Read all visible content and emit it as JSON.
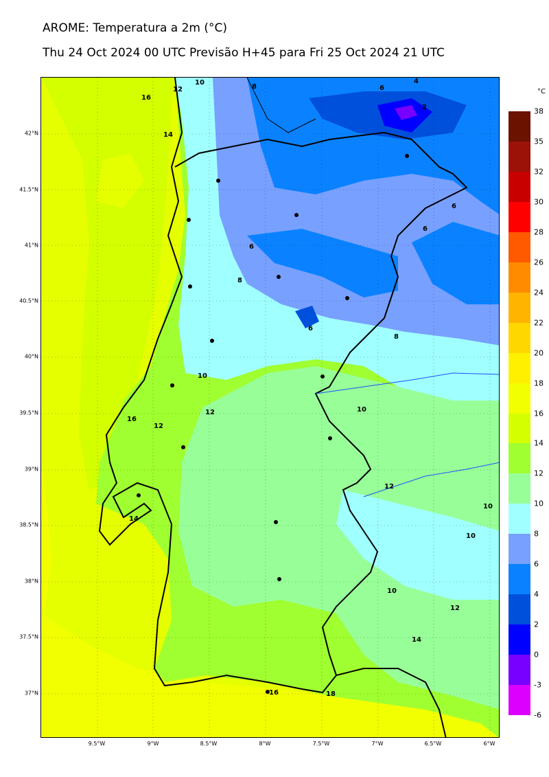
{
  "header": {
    "title": "AROME: Temperatura a 2m (°C)",
    "subtitle": "Thu 24 Oct 2024 00 UTC Previsão H+45 para Fri 25 Oct 2024 21 UTC"
  },
  "axes": {
    "lat_ticks": [
      "42°N",
      "41.5°N",
      "41°N",
      "40.5°N",
      "40°N",
      "39.5°N",
      "39°N",
      "38.5°N",
      "38°N",
      "37.5°N",
      "37°N"
    ],
    "lon_ticks": [
      "9.5°W",
      "9°W",
      "8.5°W",
      "8°W",
      "7.5°W",
      "7°W",
      "6.5°W",
      "6°W"
    ]
  },
  "colorbar": {
    "unit": "°C",
    "levels": [
      "38",
      "35",
      "32",
      "30",
      "28",
      "26",
      "24",
      "22",
      "20",
      "18",
      "16",
      "14",
      "12",
      "10",
      "8",
      "6",
      "4",
      "2",
      "0",
      "-3",
      "-6"
    ],
    "colors": [
      "#6b1200",
      "#9c1208",
      "#c80000",
      "#ff0000",
      "#ff5a00",
      "#ff8c00",
      "#ffb400",
      "#ffd700",
      "#fff000",
      "#f2ff00",
      "#d4ff00",
      "#a0ff30",
      "#98ff98",
      "#a0ffff",
      "#78a0ff",
      "#0a82ff",
      "#0050dc",
      "#0000ff",
      "#7800ff",
      "#dc00ff"
    ]
  },
  "map": {
    "contour_labels": [
      "16",
      "12",
      "10",
      "8",
      "6",
      "4",
      "2",
      "14",
      "6",
      "6",
      "6",
      "8",
      "6",
      "8",
      "10",
      "12",
      "10",
      "16",
      "12",
      "14",
      "12",
      "10",
      "10",
      "10",
      "12",
      "14",
      "16",
      "18"
    ]
  }
}
